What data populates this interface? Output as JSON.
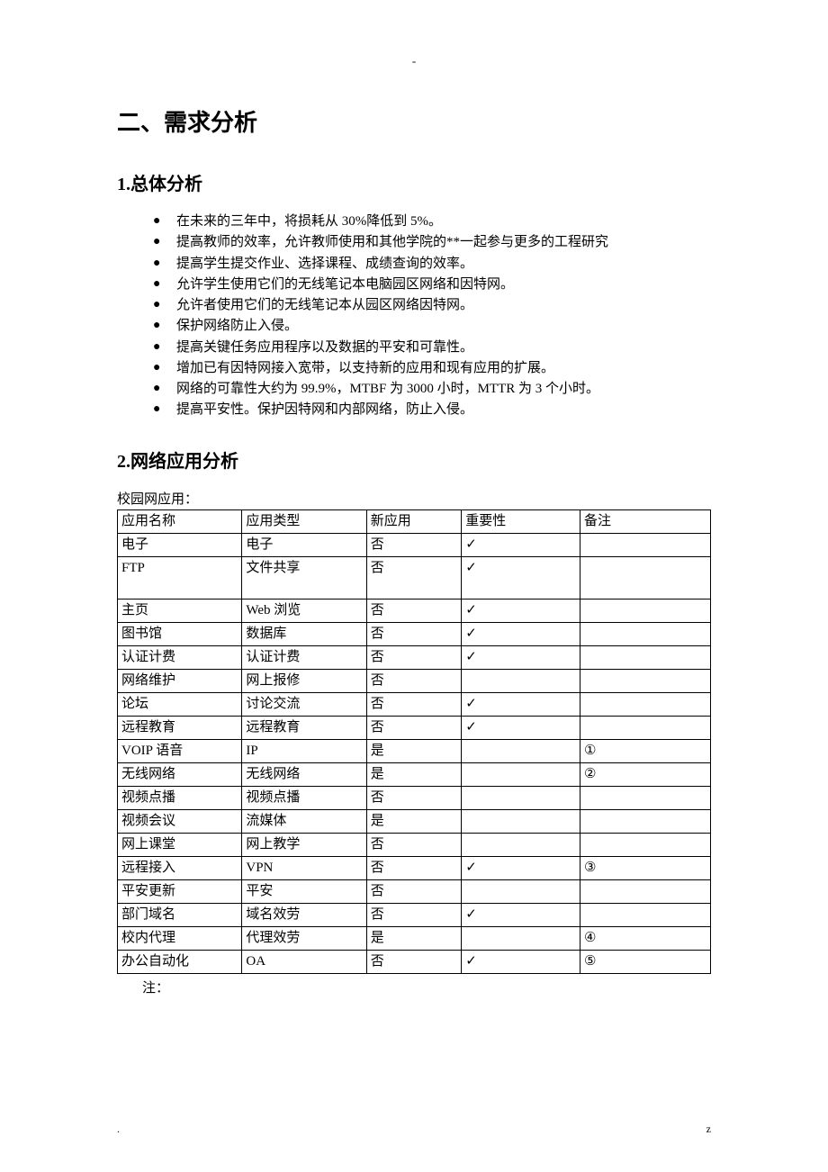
{
  "top_mark": "-",
  "heading": "二、需求分析",
  "sub1": {
    "title": "1.总体分析",
    "items": [
      "在未来的三年中，将损耗从 30%降低到 5%。",
      "提高教师的效率，允许教师使用和其他学院的**一起参与更多的工程研究",
      "提高学生提交作业、选择课程、成绩查询的效率。",
      "允许学生使用它们的无线笔记本电脑园区网络和因特网。",
      "允许者使用它们的无线笔记本从园区网络因特网。",
      "保护网络防止入侵。",
      "提高关键任务应用程序以及数据的平安和可靠性。",
      "增加已有因特网接入宽带，以支持新的应用和现有应用的扩展。",
      "网络的可靠性大约为 99.9%，MTBF 为 3000 小时，MTTR 为 3 个小时。",
      "提高平安性。保护因特网和内部网络，防止入侵。"
    ]
  },
  "sub2": {
    "title": "2.网络应用分析",
    "caption": "校园网应用：",
    "headers": [
      "应用名称",
      "应用类型",
      "新应用",
      "重要性",
      "备注"
    ],
    "rows": [
      {
        "name": "电子",
        "type": "电子",
        "new": "否",
        "imp": "✓",
        "note": "",
        "tall": false
      },
      {
        "name": "FTP",
        "type": "文件共享",
        "new": "否",
        "imp": "✓",
        "note": "",
        "tall": true
      },
      {
        "name": "主页",
        "type": "Web 浏览",
        "new": "否",
        "imp": "✓",
        "note": "",
        "tall": false
      },
      {
        "name": "图书馆",
        "type": "数据库",
        "new": "否",
        "imp": "✓",
        "note": "",
        "tall": false
      },
      {
        "name": "认证计费",
        "type": "认证计费",
        "new": "否",
        "imp": "✓",
        "note": "",
        "tall": false
      },
      {
        "name": "网络维护",
        "type": "网上报修",
        "new": "否",
        "imp": "",
        "note": "",
        "tall": false
      },
      {
        "name": "论坛",
        "type": "讨论交流",
        "new": "否",
        "imp": "✓",
        "note": "",
        "tall": false
      },
      {
        "name": "远程教育",
        "type": "远程教育",
        "new": "否",
        "imp": "✓",
        "note": "",
        "tall": false
      },
      {
        "name": "VOIP 语音",
        "type": "IP",
        "new": "是",
        "imp": "",
        "note": "①",
        "tall": false
      },
      {
        "name": "无线网络",
        "type": "无线网络",
        "new": "是",
        "imp": "",
        "note": "②",
        "tall": false
      },
      {
        "name": "视频点播",
        "type": "视频点播",
        "new": "否",
        "imp": "",
        "note": "",
        "tall": false
      },
      {
        "name": "视频会议",
        "type": "流媒体",
        "new": "是",
        "imp": "",
        "note": "",
        "tall": false
      },
      {
        "name": "网上课堂",
        "type": "网上教学",
        "new": "否",
        "imp": "",
        "note": "",
        "tall": false
      },
      {
        "name": "远程接入",
        "type": "VPN",
        "new": "否",
        "imp": "✓",
        "note": "③",
        "tall": false
      },
      {
        "name": "平安更新",
        "type": "平安",
        "new": "否",
        "imp": "",
        "note": "",
        "tall": false
      },
      {
        "name": "部门域名",
        "type": "域名效劳",
        "new": "否",
        "imp": "✓",
        "note": "",
        "tall": false
      },
      {
        "name": "校内代理",
        "type": "代理效劳",
        "new": "是",
        "imp": "",
        "note": "④",
        "tall": false
      },
      {
        "name": "办公自动化",
        "type": "OA",
        "new": "否",
        "imp": "✓",
        "note": "⑤",
        "tall": false
      }
    ],
    "note": "注："
  },
  "footer": {
    "left": ".",
    "right": "z"
  }
}
